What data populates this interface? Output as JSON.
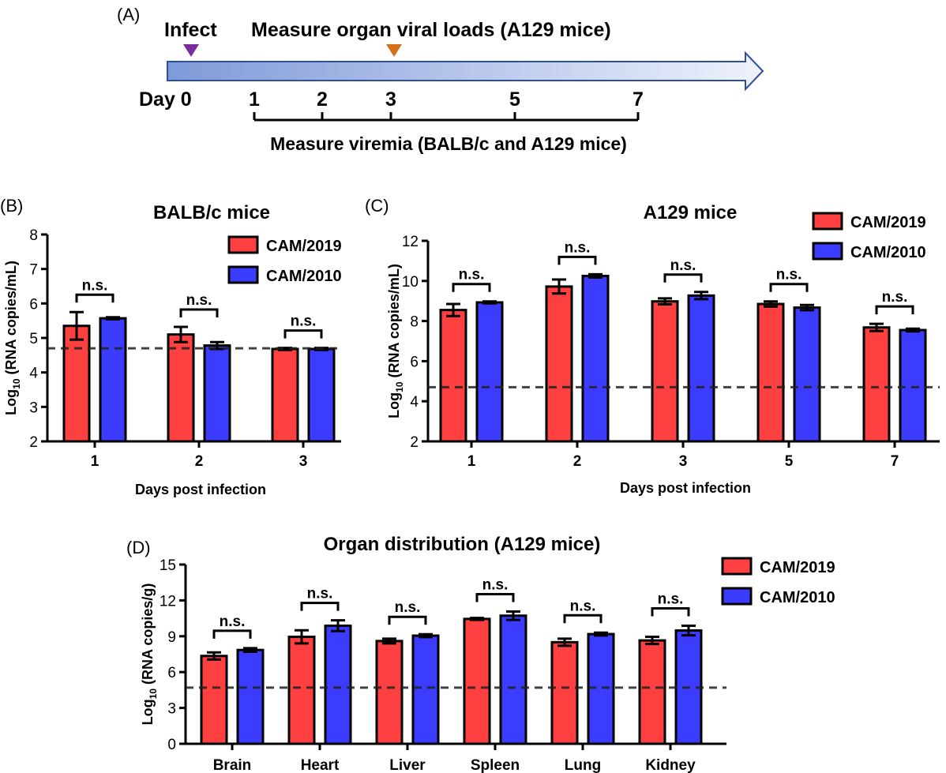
{
  "colors": {
    "CAM/2019": "#ff4040",
    "CAM/2010": "#3c3cff",
    "arrow_light": "#eef2fb",
    "arrow_dark": "#7f9ad9",
    "arrow_stroke": "#2f4f9c",
    "infect_marker": "#7a2c9e",
    "organ_marker": "#d4701c"
  },
  "timeline": {
    "panel_label": "(A)",
    "infect_label": "Infect",
    "organ_label": "Measure organ viral loads (A129 mice)",
    "day_label": "Day 0",
    "days": [
      "1",
      "2",
      "3",
      "5",
      "7"
    ],
    "viremia_label": "Measure viremia (BALB/c and A129 mice)"
  },
  "chart_data": [
    {
      "panel": "(B)",
      "type": "bar",
      "title": "BALB/c mice",
      "xlabel": "Days post infection",
      "ylabel": "Log10 (RNA copies/mL)",
      "ylim": [
        2,
        8
      ],
      "yticks": [
        "2",
        "3",
        "4",
        "5",
        "6",
        "7",
        "8"
      ],
      "categories": [
        "1",
        "2",
        "3"
      ],
      "series": [
        {
          "name": "CAM/2019",
          "values": [
            5.35,
            5.1,
            4.68
          ],
          "errors": [
            0.4,
            0.22,
            0.03
          ]
        },
        {
          "name": "CAM/2010",
          "values": [
            5.57,
            4.78,
            4.68
          ],
          "errors": [
            0.03,
            0.1,
            0.03
          ]
        }
      ],
      "significance": [
        "n.s.",
        "n.s.",
        "n.s."
      ],
      "detection_limit": 4.7,
      "legend": "top-right"
    },
    {
      "panel": "(C)",
      "type": "bar",
      "title": "A129 mice",
      "xlabel": "Days post infection",
      "ylabel": "Log10 (RNA copies/mL)",
      "ylim": [
        2,
        12
      ],
      "yticks": [
        "2",
        "4",
        "6",
        "8",
        "10",
        "12"
      ],
      "categories": [
        "1",
        "2",
        "3",
        "5",
        "7"
      ],
      "series": [
        {
          "name": "CAM/2019",
          "values": [
            8.55,
            9.72,
            8.98,
            8.85,
            7.68
          ],
          "errors": [
            0.3,
            0.35,
            0.15,
            0.13,
            0.18
          ]
        },
        {
          "name": "CAM/2010",
          "values": [
            8.93,
            10.25,
            9.27,
            8.67,
            7.55
          ],
          "errors": [
            0.05,
            0.08,
            0.18,
            0.13,
            0.07
          ]
        }
      ],
      "significance": [
        "n.s.",
        "n.s.",
        "n.s.",
        "n.s.",
        "n.s."
      ],
      "detection_limit": 4.7,
      "legend": "top-right"
    },
    {
      "panel": "(D)",
      "type": "bar",
      "title": "Organ distribution (A129 mice)",
      "xlabel": "",
      "ylabel": "Log10 (RNA copies/g)",
      "ylim": [
        0,
        15
      ],
      "yticks": [
        "0",
        "3",
        "6",
        "9",
        "12",
        "15"
      ],
      "categories": [
        "Brain",
        "Heart",
        "Liver",
        "Spleen",
        "Lung",
        "Kidney"
      ],
      "series": [
        {
          "name": "CAM/2019",
          "values": [
            7.35,
            8.95,
            8.6,
            10.45,
            8.5,
            8.65
          ],
          "errors": [
            0.3,
            0.55,
            0.2,
            0.08,
            0.3,
            0.3
          ]
        },
        {
          "name": "CAM/2010",
          "values": [
            7.85,
            9.88,
            9.05,
            10.72,
            9.18,
            9.48
          ],
          "errors": [
            0.15,
            0.45,
            0.12,
            0.35,
            0.12,
            0.4
          ]
        }
      ],
      "significance": [
        "n.s.",
        "n.s.",
        "n.s.",
        "n.s.",
        "n.s.",
        "n.s."
      ],
      "detection_limit": 4.7,
      "legend": "top-right"
    }
  ]
}
